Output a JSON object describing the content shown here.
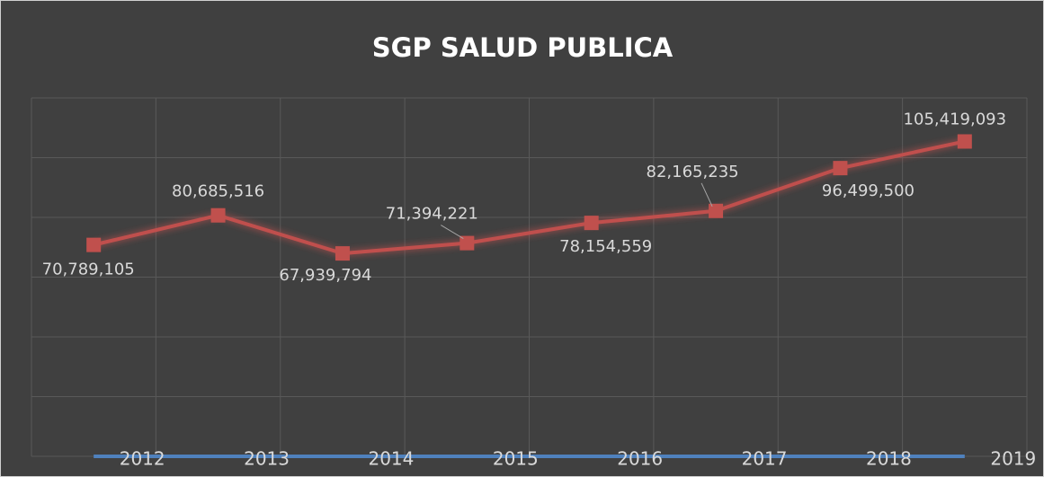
{
  "chart_data": {
    "type": "line",
    "title": "SGP SALUD PUBLICA",
    "categories": [
      null,
      null,
      null,
      null,
      null,
      null,
      null,
      null
    ],
    "series": [
      {
        "color": "#4f81bd",
        "values": [
          2012,
          2013,
          2014,
          2015,
          2016,
          2017,
          2018,
          2019
        ],
        "value_labels": [
          "2012",
          "2013",
          "2014",
          "2015",
          "2016",
          "2017",
          "2018",
          "2019"
        ]
      },
      {
        "color": "#c0504d",
        "values": [
          70789105,
          80685516,
          67939794,
          71394221,
          78154559,
          82165235,
          96499500,
          105419093
        ],
        "value_labels": [
          "70,789,105",
          "80,685,516",
          "67,939,794",
          "71,394,221",
          "78,154,559",
          "82,165,235",
          "96,499,500",
          "105,419,093"
        ]
      }
    ],
    "ylim": [
      0,
      120000000
    ],
    "yticks": [
      0,
      20000000,
      40000000,
      60000000,
      80000000,
      100000000,
      120000000
    ],
    "grid": true
  }
}
